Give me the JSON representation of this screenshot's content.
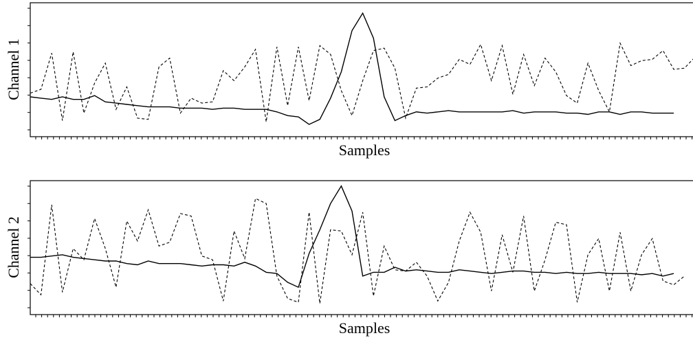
{
  "chart_data": [
    {
      "type": "line",
      "ylabel": "Channel 1",
      "xlabel": "Samples",
      "xlim": [
        0,
        60
      ],
      "ylim": [
        0,
        1
      ],
      "grid": false,
      "series": [
        {
          "style": "solid",
          "color": "#000000",
          "values": [
            0.28,
            0.27,
            0.26,
            0.28,
            0.26,
            0.26,
            0.29,
            0.24,
            0.23,
            0.22,
            0.21,
            0.2,
            0.2,
            0.2,
            0.19,
            0.19,
            0.19,
            0.18,
            0.19,
            0.19,
            0.18,
            0.18,
            0.18,
            0.16,
            0.13,
            0.12,
            0.06,
            0.1,
            0.27,
            0.48,
            0.81,
            0.95,
            0.75,
            0.28,
            0.09,
            0.13,
            0.16,
            0.15,
            0.16,
            0.17,
            0.16,
            0.16,
            0.16,
            0.16,
            0.16,
            0.17,
            0.15,
            0.16,
            0.16,
            0.16,
            0.15,
            0.15,
            0.14,
            0.16,
            0.16,
            0.14,
            0.16,
            0.16,
            0.15,
            0.15,
            0.15
          ]
        },
        {
          "style": "dashed",
          "color": "#000000",
          "values": [
            0.31,
            0.34,
            0.63,
            0.09,
            0.64,
            0.15,
            0.39,
            0.55,
            0.18,
            0.36,
            0.11,
            0.1,
            0.52,
            0.59,
            0.15,
            0.27,
            0.23,
            0.24,
            0.49,
            0.41,
            0.52,
            0.66,
            0.08,
            0.68,
            0.21,
            0.68,
            0.25,
            0.69,
            0.62,
            0.33,
            0.13,
            0.41,
            0.65,
            0.67,
            0.51,
            0.11,
            0.35,
            0.36,
            0.43,
            0.46,
            0.58,
            0.54,
            0.7,
            0.41,
            0.69,
            0.3,
            0.62,
            0.37,
            0.59,
            0.48,
            0.29,
            0.23,
            0.55,
            0.33,
            0.16,
            0.71,
            0.53,
            0.57,
            0.58,
            0.65,
            0.5,
            0.51,
            0.6
          ]
        }
      ]
    },
    {
      "type": "line",
      "ylabel": "Channel 2",
      "xlabel": "Samples",
      "xlim": [
        0,
        60
      ],
      "ylim": [
        0,
        1
      ],
      "grid": false,
      "series": [
        {
          "style": "solid",
          "color": "#000000",
          "values": [
            0.42,
            0.42,
            0.43,
            0.44,
            0.42,
            0.41,
            0.4,
            0.39,
            0.39,
            0.37,
            0.36,
            0.39,
            0.37,
            0.37,
            0.37,
            0.36,
            0.35,
            0.36,
            0.36,
            0.35,
            0.38,
            0.35,
            0.3,
            0.29,
            0.22,
            0.18,
            0.45,
            0.64,
            0.85,
            0.99,
            0.79,
            0.27,
            0.3,
            0.3,
            0.34,
            0.31,
            0.32,
            0.31,
            0.3,
            0.3,
            0.32,
            0.31,
            0.3,
            0.29,
            0.3,
            0.31,
            0.31,
            0.3,
            0.3,
            0.29,
            0.3,
            0.29,
            0.29,
            0.3,
            0.29,
            0.29,
            0.29,
            0.28,
            0.29,
            0.27,
            0.29
          ]
        },
        {
          "style": "dashed",
          "color": "#000000",
          "values": [
            0.21,
            0.12,
            0.84,
            0.14,
            0.49,
            0.4,
            0.73,
            0.49,
            0.18,
            0.71,
            0.55,
            0.8,
            0.51,
            0.54,
            0.77,
            0.75,
            0.43,
            0.4,
            0.07,
            0.63,
            0.41,
            0.89,
            0.85,
            0.27,
            0.09,
            0.06,
            0.78,
            0.05,
            0.64,
            0.63,
            0.44,
            0.78,
            0.11,
            0.51,
            0.32,
            0.31,
            0.38,
            0.27,
            0.07,
            0.22,
            0.55,
            0.78,
            0.62,
            0.15,
            0.6,
            0.3,
            0.75,
            0.15,
            0.4,
            0.7,
            0.68,
            0.06,
            0.44,
            0.57,
            0.15,
            0.62,
            0.15,
            0.44,
            0.57,
            0.23,
            0.2,
            0.27
          ]
        }
      ]
    }
  ]
}
